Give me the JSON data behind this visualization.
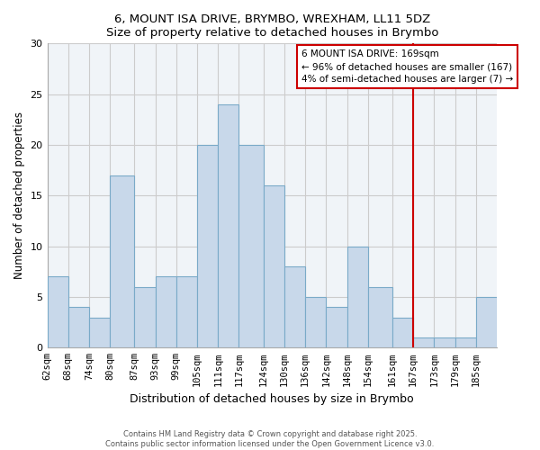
{
  "title": "6, MOUNT ISA DRIVE, BRYMBO, WREXHAM, LL11 5DZ",
  "subtitle": "Size of property relative to detached houses in Brymbo",
  "xlabel": "Distribution of detached houses by size in Brymbo",
  "ylabel": "Number of detached properties",
  "bar_color": "#c8d8ea",
  "bar_edge_color": "#7aaac8",
  "categories": [
    "62sqm",
    "68sqm",
    "74sqm",
    "80sqm",
    "87sqm",
    "93sqm",
    "99sqm",
    "105sqm",
    "111sqm",
    "117sqm",
    "124sqm",
    "130sqm",
    "136sqm",
    "142sqm",
    "148sqm",
    "154sqm",
    "161sqm",
    "167sqm",
    "173sqm",
    "179sqm",
    "185sqm"
  ],
  "values": [
    7,
    4,
    3,
    17,
    6,
    7,
    7,
    20,
    24,
    20,
    16,
    8,
    5,
    4,
    10,
    6,
    3,
    1,
    1,
    1,
    5
  ],
  "ylim": [
    0,
    30
  ],
  "yticks": [
    0,
    5,
    10,
    15,
    20,
    25,
    30
  ],
  "marker_label": "6 MOUNT ISA DRIVE: 169sqm",
  "annotation_line1": "← 96% of detached houses are smaller (167)",
  "annotation_line2": "4% of semi-detached houses are larger (7) →",
  "marker_color": "#cc0000",
  "grid_color": "#cccccc",
  "plot_bg_color": "#f0f4f8",
  "footer1": "Contains HM Land Registry data © Crown copyright and database right 2025.",
  "footer2": "Contains public sector information licensed under the Open Government Licence v3.0.",
  "bin_edges": [
    62,
    68,
    74,
    80,
    87,
    93,
    99,
    105,
    111,
    117,
    124,
    130,
    136,
    142,
    148,
    154,
    161,
    167,
    173,
    179,
    185,
    191
  ],
  "marker_bin_index": 17
}
